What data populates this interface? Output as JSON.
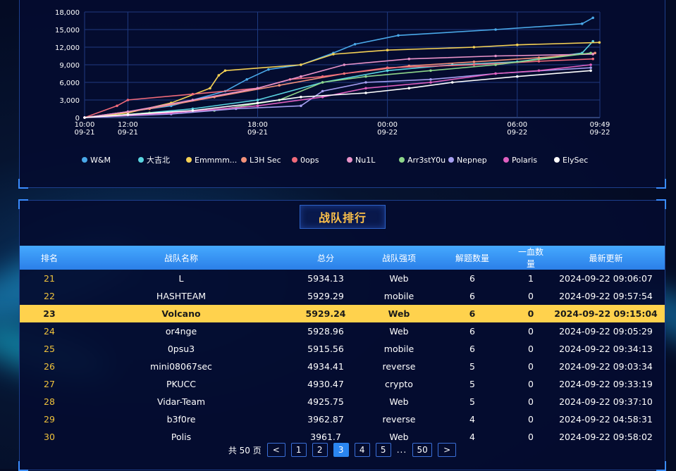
{
  "chart_data": {
    "type": "line",
    "yticks": [
      "0",
      "3,000",
      "6,000",
      "9,000",
      "12,000",
      "15,000",
      "18,000"
    ],
    "ylim": [
      0,
      18000
    ],
    "xticks": [
      {
        "time": "10:00",
        "date": "09-21"
      },
      {
        "time": "12:00",
        "date": "09-21"
      },
      {
        "time": "18:00",
        "date": "09-21"
      },
      {
        "time": "00:00",
        "date": "09-22"
      },
      {
        "time": "06:00",
        "date": "09-22"
      },
      {
        "time": "09:49",
        "date": "09-22"
      }
    ],
    "xtick_hours": [
      0,
      2,
      8,
      14,
      20,
      23.82
    ],
    "xlim": [
      0,
      23.82
    ],
    "legend_position": "bottom",
    "grid": true,
    "series": [
      {
        "name": "W&M",
        "color": "#4aa8e8",
        "points": [
          [
            0,
            0
          ],
          [
            2,
            1000
          ],
          [
            4,
            2000
          ],
          [
            6.5,
            4500
          ],
          [
            7.5,
            6500
          ],
          [
            8.5,
            8200
          ],
          [
            10,
            9000
          ],
          [
            11.5,
            11000
          ],
          [
            12.5,
            12500
          ],
          [
            14.5,
            14000
          ],
          [
            19,
            15000
          ],
          [
            23,
            16000
          ],
          [
            23.5,
            17000
          ]
        ]
      },
      {
        "name": "大吉北",
        "color": "#5ad4e0",
        "points": [
          [
            0,
            0
          ],
          [
            2,
            500
          ],
          [
            5,
            1500
          ],
          [
            8,
            3000
          ],
          [
            11,
            6000
          ],
          [
            14,
            8000
          ],
          [
            17,
            9000
          ],
          [
            20,
            9500
          ],
          [
            23,
            11000
          ],
          [
            23.5,
            13000
          ]
        ]
      },
      {
        "name": "Emmmm...",
        "color": "#f5d155",
        "points": [
          [
            0,
            0
          ],
          [
            2,
            800
          ],
          [
            4,
            2500
          ],
          [
            5.8,
            5000
          ],
          [
            6.2,
            7200
          ],
          [
            6.5,
            8000
          ],
          [
            10,
            9000
          ],
          [
            11.5,
            10800
          ],
          [
            14,
            11500
          ],
          [
            18,
            12000
          ],
          [
            20,
            12400
          ],
          [
            23.8,
            12800
          ]
        ]
      },
      {
        "name": "L3H Sec",
        "color": "#f2917a",
        "points": [
          [
            0,
            0
          ],
          [
            3,
            1500
          ],
          [
            6,
            3500
          ],
          [
            9,
            5500
          ],
          [
            12,
            7500
          ],
          [
            15,
            8800
          ],
          [
            18,
            9500
          ],
          [
            21,
            10200
          ],
          [
            23.6,
            11000
          ]
        ]
      },
      {
        "name": "0ops",
        "color": "#f06a7a",
        "points": [
          [
            0,
            0
          ],
          [
            1.5,
            2000
          ],
          [
            2,
            3000
          ],
          [
            5,
            4000
          ],
          [
            8,
            5000
          ],
          [
            9.5,
            6500
          ],
          [
            11,
            7000
          ],
          [
            14,
            8500
          ],
          [
            18,
            9000
          ],
          [
            21,
            9600
          ],
          [
            23.5,
            10000
          ]
        ]
      },
      {
        "name": "Nu1L",
        "color": "#e892c8",
        "points": [
          [
            0,
            0
          ],
          [
            2,
            1000
          ],
          [
            5,
            3000
          ],
          [
            8,
            5000
          ],
          [
            10,
            7000
          ],
          [
            12,
            9000
          ],
          [
            15,
            10000
          ],
          [
            19,
            10500
          ],
          [
            23.5,
            10800
          ]
        ]
      },
      {
        "name": "Arr3stY0u",
        "color": "#8ed68a",
        "points": [
          [
            0,
            0
          ],
          [
            3,
            800
          ],
          [
            6,
            1200
          ],
          [
            9,
            3000
          ],
          [
            11,
            6000
          ],
          [
            13,
            7000
          ],
          [
            16,
            8000
          ],
          [
            19,
            9000
          ],
          [
            23.4,
            11000
          ]
        ]
      },
      {
        "name": "Nepnep",
        "color": "#a59ef0",
        "points": [
          [
            0,
            0
          ],
          [
            4,
            600
          ],
          [
            7,
            1500
          ],
          [
            10,
            2000
          ],
          [
            11,
            4500
          ],
          [
            13,
            6000
          ],
          [
            16,
            6500
          ],
          [
            19,
            7500
          ],
          [
            23.4,
            8500
          ]
        ]
      },
      {
        "name": "Polaris",
        "color": "#e060c0",
        "points": [
          [
            0,
            0
          ],
          [
            4,
            800
          ],
          [
            8,
            2000
          ],
          [
            11,
            3500
          ],
          [
            13,
            5000
          ],
          [
            16,
            6000
          ],
          [
            19,
            7500
          ],
          [
            21,
            8000
          ],
          [
            23.4,
            9000
          ]
        ]
      },
      {
        "name": "ElySec",
        "color": "#ffffff",
        "points": [
          [
            0,
            0
          ],
          [
            2,
            500
          ],
          [
            5,
            1200
          ],
          [
            8,
            2500
          ],
          [
            10,
            3500
          ],
          [
            13,
            4200
          ],
          [
            15,
            5000
          ],
          [
            17,
            6000
          ],
          [
            20,
            7000
          ],
          [
            23.4,
            8000
          ]
        ]
      }
    ]
  },
  "ranking": {
    "title": "战队排行",
    "columns": [
      "排名",
      "战队名称",
      "总分",
      "战队强项",
      "解题数量",
      "一血数量",
      "最新更新"
    ],
    "rows": [
      {
        "rank": "21",
        "name": "L",
        "score": "5934.13",
        "strength": "Web",
        "solved": "6",
        "blood": "1",
        "updated": "2024-09-22 09:06:07"
      },
      {
        "rank": "22",
        "name": "HASHTEAM",
        "score": "5929.29",
        "strength": "mobile",
        "solved": "6",
        "blood": "0",
        "updated": "2024-09-22 09:57:54"
      },
      {
        "rank": "23",
        "name": "Volcano",
        "score": "5929.24",
        "strength": "Web",
        "solved": "6",
        "blood": "0",
        "updated": "2024-09-22 09:15:04"
      },
      {
        "rank": "24",
        "name": "or4nge",
        "score": "5928.96",
        "strength": "Web",
        "solved": "6",
        "blood": "0",
        "updated": "2024-09-22 09:05:29"
      },
      {
        "rank": "25",
        "name": "0psu3",
        "score": "5915.56",
        "strength": "mobile",
        "solved": "6",
        "blood": "0",
        "updated": "2024-09-22 09:34:13"
      },
      {
        "rank": "26",
        "name": "mini08067sec",
        "score": "4934.41",
        "strength": "reverse",
        "solved": "5",
        "blood": "0",
        "updated": "2024-09-22 09:03:34"
      },
      {
        "rank": "27",
        "name": "PKUCC",
        "score": "4930.47",
        "strength": "crypto",
        "solved": "5",
        "blood": "0",
        "updated": "2024-09-22 09:33:19"
      },
      {
        "rank": "28",
        "name": "Vidar-Team",
        "score": "4925.75",
        "strength": "Web",
        "solved": "5",
        "blood": "0",
        "updated": "2024-09-22 09:37:10"
      },
      {
        "rank": "29",
        "name": "b3f0re",
        "score": "3962.87",
        "strength": "reverse",
        "solved": "4",
        "blood": "0",
        "updated": "2024-09-22 04:58:31"
      },
      {
        "rank": "30",
        "name": "Polis",
        "score": "3961.7",
        "strength": "Web",
        "solved": "4",
        "blood": "0",
        "updated": "2024-09-22 09:58:02"
      }
    ],
    "highlight_rank": "23",
    "highlight_color": "#ffd24d"
  },
  "pagination": {
    "total_label": "共 50 页",
    "prev": "<",
    "next": ">",
    "pages": [
      "1",
      "2",
      "3",
      "4",
      "5"
    ],
    "ellipsis": "...",
    "last": "50",
    "current": "3"
  }
}
